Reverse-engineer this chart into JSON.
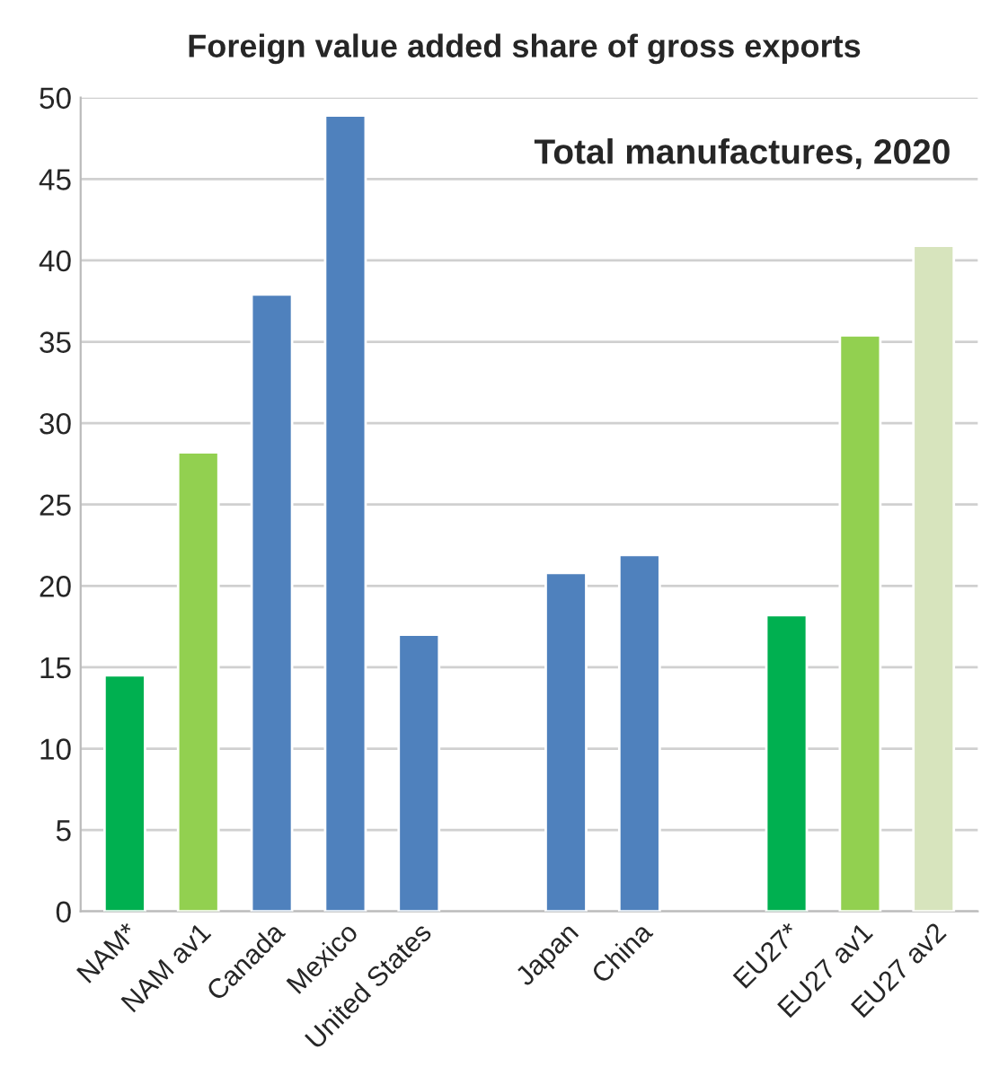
{
  "chart_data": {
    "type": "bar",
    "title": "Foreign value added share of gross exports",
    "annotations": [
      "Total manufactures, 2020"
    ],
    "categories": [
      "NAM*",
      "NAM av1",
      "Canada",
      "Mexico",
      "United States",
      null,
      "Japan",
      "China",
      null,
      "EU27*",
      "EU27 av1",
      "EU27 av2"
    ],
    "values": [
      14.5,
      28.2,
      37.9,
      48.9,
      17.0,
      null,
      20.8,
      21.9,
      null,
      18.2,
      35.4,
      40.9
    ],
    "colors": [
      "#00b050",
      "#92d050",
      "#4f81bd",
      "#4f81bd",
      "#4f81bd",
      "#4f81bd",
      "#4f81bd",
      "#4f81bd",
      "#4f81bd",
      "#00b050",
      "#92d050",
      "#d7e4bd"
    ],
    "ylim": [
      0,
      50
    ],
    "yticks": [
      0,
      5,
      10,
      15,
      20,
      25,
      30,
      35,
      40,
      45,
      50
    ],
    "grid": "y",
    "legend": false
  }
}
